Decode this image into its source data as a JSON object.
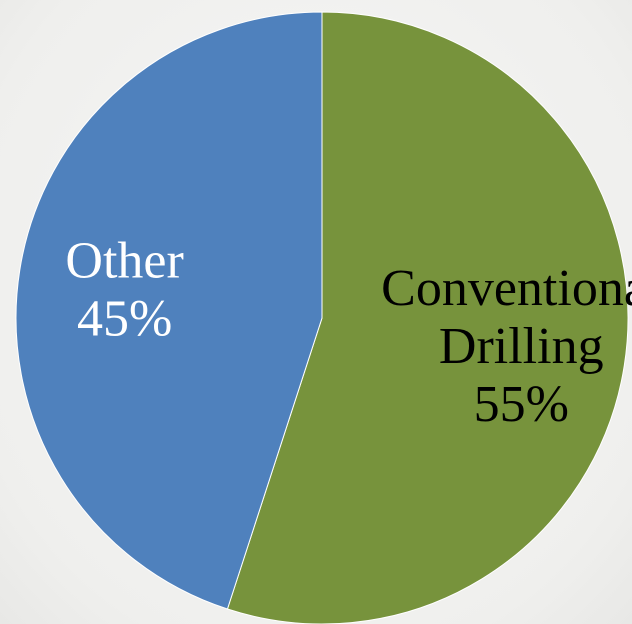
{
  "chart_data": {
    "type": "pie",
    "title": "",
    "slices": [
      {
        "label": "Conventional Drilling",
        "label_lines": [
          "Conventional",
          "Drilling"
        ],
        "value": 55,
        "percent_label": "55%",
        "color": "#77933c",
        "text_color": "#000000"
      },
      {
        "label": "Other",
        "label_lines": [
          "Other"
        ],
        "value": 45,
        "percent_label": "45%",
        "color": "#4f81bd",
        "text_color": "#ffffff"
      }
    ],
    "start_angle_deg": 0,
    "direction": "clockwise",
    "legend": "none"
  }
}
